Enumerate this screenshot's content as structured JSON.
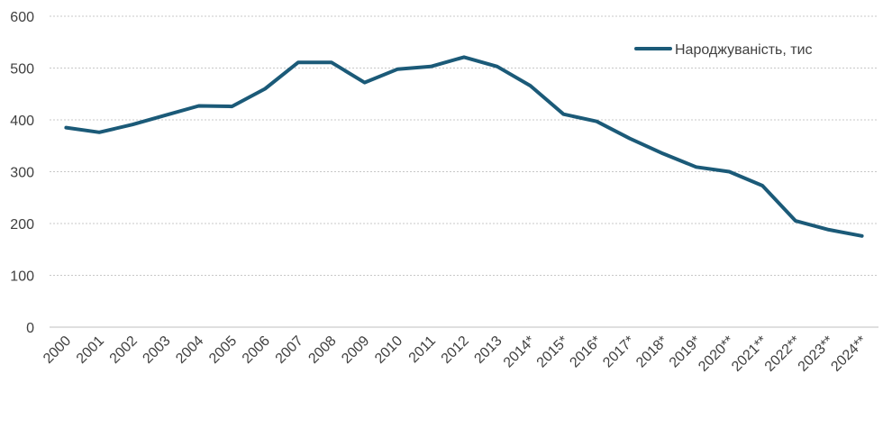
{
  "chart_data": {
    "type": "line",
    "title": "",
    "xlabel": "",
    "ylabel": "",
    "ylim": [
      0,
      600
    ],
    "yticks": [
      0,
      100,
      200,
      300,
      400,
      500,
      600
    ],
    "grid": true,
    "legend_position": "top-right",
    "categories": [
      "2000",
      "2001",
      "2002",
      "2003",
      "2004",
      "2005",
      "2006",
      "2007",
      "2008",
      "2009",
      "2010",
      "2011",
      "2012",
      "2013",
      "2014*",
      "2015*",
      "2016*",
      "2017*",
      "2018*",
      "2019*",
      "2020**",
      "2021**",
      "2022**",
      "2023**",
      "2024**"
    ],
    "series": [
      {
        "name": "Народжуваність, тис",
        "color": "#1b5a78",
        "values": [
          385,
          376,
          391,
          409,
          427,
          426,
          460,
          511,
          511,
          472,
          498,
          503,
          521,
          503,
          466,
          411,
          397,
          364,
          335,
          309,
          300,
          273,
          205,
          188,
          176
        ]
      }
    ]
  }
}
